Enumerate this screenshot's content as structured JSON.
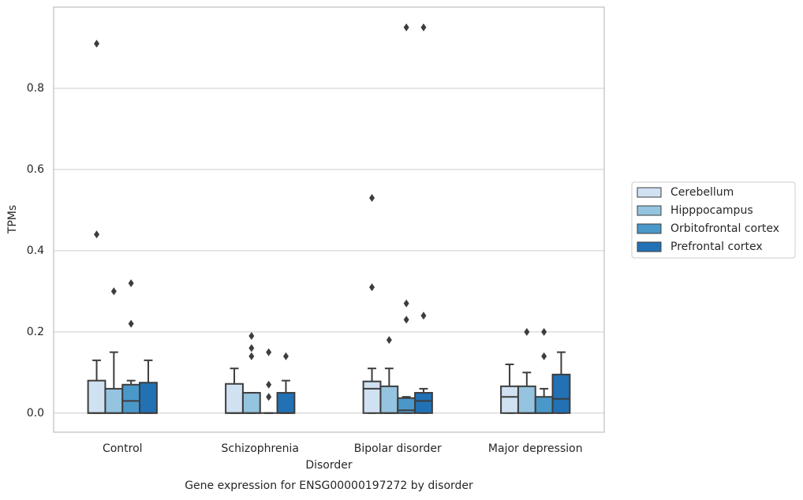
{
  "chart_data": {
    "type": "box",
    "title": "Gene expression for ENSG00000197272 by disorder",
    "x_label": "Disorder",
    "y_label": "TPMs",
    "categories": [
      "Control",
      "Schizophrenia",
      "Bipolar disorder",
      "Major depression"
    ],
    "ylim": [
      -0.047,
      1.0
    ],
    "yticks": [
      {
        "value": 0,
        "label": "0.0"
      },
      0.2,
      0.4,
      0.6,
      0.8
    ],
    "grid": true,
    "legend": "right",
    "series": [
      {
        "name": "Cerebellum",
        "color": "#d0e1f2",
        "boxes": [
          {
            "min": 0,
            "q1": 0,
            "median": 0,
            "q3": 0.08,
            "max": 0.13,
            "outliers": [
              0.91,
              0.44
            ]
          },
          {
            "min": 0,
            "q1": 0,
            "median": 0,
            "q3": 0.072,
            "max": 0.11,
            "outliers": []
          },
          {
            "min": 0,
            "q1": 0,
            "median": 0.06,
            "q3": 0.078,
            "max": 0.11,
            "outliers": [
              0.53,
              0.31
            ]
          },
          {
            "min": 0,
            "q1": 0,
            "median": 0.04,
            "q3": 0.066,
            "max": 0.12,
            "outliers": []
          }
        ]
      },
      {
        "name": "Hipppocampus",
        "color": "#94c4df",
        "boxes": [
          {
            "min": 0,
            "q1": 0,
            "median": 0,
            "q3": 0.06,
            "max": 0.15,
            "outliers": [
              0.3
            ]
          },
          {
            "min": 0,
            "q1": 0,
            "median": 0,
            "q3": 0.05,
            "max": 0.05,
            "outliers": [
              0.19,
              0.16,
              0.14
            ]
          },
          {
            "min": 0,
            "q1": 0,
            "median": 0,
            "q3": 0.066,
            "max": 0.11,
            "outliers": [
              0.18
            ]
          },
          {
            "min": 0,
            "q1": 0,
            "median": 0,
            "q3": 0.066,
            "max": 0.1,
            "outliers": [
              0.2
            ]
          }
        ]
      },
      {
        "name": "Orbitofrontal cortex",
        "color": "#4a98c9",
        "boxes": [
          {
            "min": 0,
            "q1": 0,
            "median": 0.03,
            "q3": 0.07,
            "max": 0.08,
            "outliers": [
              0.32,
              0.22
            ]
          },
          {
            "min": 0,
            "q1": 0,
            "median": 0,
            "q3": 0,
            "max": 0,
            "outliers": [
              0.15,
              0.07,
              0.04
            ]
          },
          {
            "min": 0,
            "q1": 0,
            "median": 0.007,
            "q3": 0.037,
            "max": 0.04,
            "outliers": [
              0.95,
              0.27,
              0.23
            ]
          },
          {
            "min": 0,
            "q1": 0,
            "median": 0,
            "q3": 0.04,
            "max": 0.06,
            "outliers": [
              0.2,
              0.14
            ]
          }
        ]
      },
      {
        "name": "Prefrontal cortex",
        "color": "#2271b5",
        "boxes": [
          {
            "min": 0,
            "q1": 0,
            "median": 0,
            "q3": 0.075,
            "max": 0.13,
            "outliers": []
          },
          {
            "min": 0,
            "q1": 0,
            "median": 0,
            "q3": 0.05,
            "max": 0.08,
            "outliers": [
              0.14
            ]
          },
          {
            "min": 0,
            "q1": 0,
            "median": 0.03,
            "q3": 0.05,
            "max": 0.06,
            "outliers": [
              0.95,
              0.24
            ]
          },
          {
            "min": 0,
            "q1": 0,
            "median": 0.035,
            "q3": 0.095,
            "max": 0.15,
            "outliers": []
          }
        ]
      }
    ]
  }
}
